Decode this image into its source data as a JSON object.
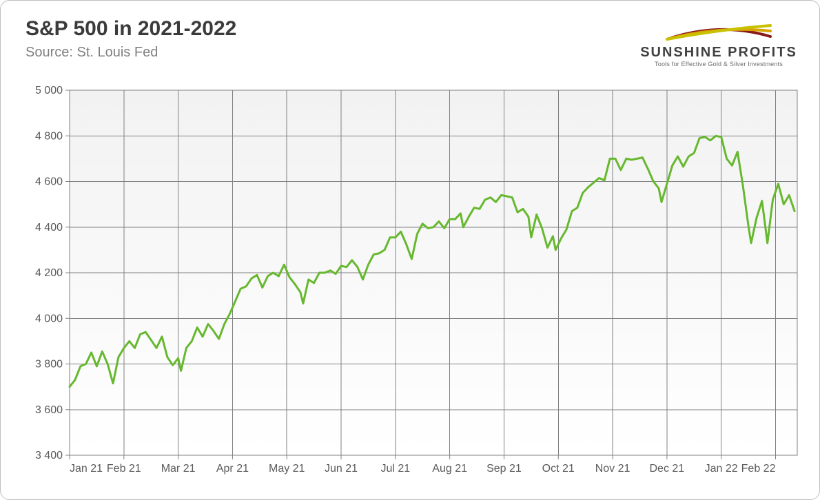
{
  "header": {
    "title": "S&P 500 in 2021-2022",
    "source": "Source: St. Louis Fed"
  },
  "logo": {
    "brand": "SUNSHINE PROFITS",
    "tagline": "Tools for Effective Gold & Silver Investments",
    "stroke_colors": [
      "#8a1a1a",
      "#d9a400",
      "#c9c000"
    ]
  },
  "chart": {
    "type": "line",
    "background_top": "#f2f2f2",
    "background_bottom": "#ffffff",
    "grid_color": "#808080",
    "grid_width": 1,
    "line_color": "#66b82e",
    "line_width": 3,
    "tick_font_size": 16,
    "tick_color": "#5a5a5a",
    "y": {
      "min": 3400,
      "max": 5000,
      "step": 200,
      "labels": [
        "3 400",
        "3 600",
        "3 800",
        "4 000",
        "4 200",
        "4 400",
        "4 600",
        "4 800",
        "5 000"
      ]
    },
    "x": {
      "labels": [
        "Jan 21",
        "Feb 21",
        "Mar 21",
        "Apr 21",
        "May 21",
        "Jun 21",
        "Jul 21",
        "Aug 21",
        "Sep 21",
        "Oct 21",
        "Nov 21",
        "Dec 21",
        "Jan 22",
        "Feb 22"
      ],
      "months": 13.4
    },
    "series": [
      {
        "m": 0.0,
        "v": 3700
      },
      {
        "m": 0.1,
        "v": 3730
      },
      {
        "m": 0.2,
        "v": 3790
      },
      {
        "m": 0.3,
        "v": 3800
      },
      {
        "m": 0.4,
        "v": 3850
      },
      {
        "m": 0.5,
        "v": 3790
      },
      {
        "m": 0.6,
        "v": 3855
      },
      {
        "m": 0.7,
        "v": 3800
      },
      {
        "m": 0.8,
        "v": 3715
      },
      {
        "m": 0.9,
        "v": 3830
      },
      {
        "m": 1.0,
        "v": 3870
      },
      {
        "m": 1.1,
        "v": 3900
      },
      {
        "m": 1.2,
        "v": 3870
      },
      {
        "m": 1.3,
        "v": 3930
      },
      {
        "m": 1.4,
        "v": 3940
      },
      {
        "m": 1.5,
        "v": 3905
      },
      {
        "m": 1.6,
        "v": 3870
      },
      {
        "m": 1.7,
        "v": 3920
      },
      {
        "m": 1.8,
        "v": 3830
      },
      {
        "m": 1.9,
        "v": 3795
      },
      {
        "m": 2.0,
        "v": 3825
      },
      {
        "m": 2.05,
        "v": 3770
      },
      {
        "m": 2.15,
        "v": 3870
      },
      {
        "m": 2.25,
        "v": 3900
      },
      {
        "m": 2.35,
        "v": 3960
      },
      {
        "m": 2.45,
        "v": 3920
      },
      {
        "m": 2.55,
        "v": 3975
      },
      {
        "m": 2.65,
        "v": 3945
      },
      {
        "m": 2.75,
        "v": 3910
      },
      {
        "m": 2.85,
        "v": 3975
      },
      {
        "m": 2.95,
        "v": 4020
      },
      {
        "m": 3.05,
        "v": 4075
      },
      {
        "m": 3.15,
        "v": 4130
      },
      {
        "m": 3.25,
        "v": 4140
      },
      {
        "m": 3.35,
        "v": 4175
      },
      {
        "m": 3.45,
        "v": 4190
      },
      {
        "m": 3.55,
        "v": 4135
      },
      {
        "m": 3.65,
        "v": 4185
      },
      {
        "m": 3.75,
        "v": 4200
      },
      {
        "m": 3.85,
        "v": 4185
      },
      {
        "m": 3.95,
        "v": 4235
      },
      {
        "m": 4.05,
        "v": 4180
      },
      {
        "m": 4.15,
        "v": 4150
      },
      {
        "m": 4.25,
        "v": 4115
      },
      {
        "m": 4.3,
        "v": 4065
      },
      {
        "m": 4.4,
        "v": 4170
      },
      {
        "m": 4.5,
        "v": 4155
      },
      {
        "m": 4.6,
        "v": 4200
      },
      {
        "m": 4.7,
        "v": 4200
      },
      {
        "m": 4.8,
        "v": 4210
      },
      {
        "m": 4.9,
        "v": 4195
      },
      {
        "m": 5.0,
        "v": 4230
      },
      {
        "m": 5.1,
        "v": 4225
      },
      {
        "m": 5.2,
        "v": 4255
      },
      {
        "m": 5.3,
        "v": 4225
      },
      {
        "m": 5.4,
        "v": 4170
      },
      {
        "m": 5.5,
        "v": 4235
      },
      {
        "m": 5.6,
        "v": 4280
      },
      {
        "m": 5.7,
        "v": 4285
      },
      {
        "m": 5.8,
        "v": 4300
      },
      {
        "m": 5.9,
        "v": 4355
      },
      {
        "m": 6.0,
        "v": 4355
      },
      {
        "m": 6.1,
        "v": 4380
      },
      {
        "m": 6.2,
        "v": 4325
      },
      {
        "m": 6.3,
        "v": 4260
      },
      {
        "m": 6.4,
        "v": 4370
      },
      {
        "m": 6.5,
        "v": 4415
      },
      {
        "m": 6.6,
        "v": 4395
      },
      {
        "m": 6.7,
        "v": 4400
      },
      {
        "m": 6.8,
        "v": 4425
      },
      {
        "m": 6.9,
        "v": 4395
      },
      {
        "m": 7.0,
        "v": 4435
      },
      {
        "m": 7.1,
        "v": 4435
      },
      {
        "m": 7.2,
        "v": 4460
      },
      {
        "m": 7.25,
        "v": 4400
      },
      {
        "m": 7.35,
        "v": 4445
      },
      {
        "m": 7.45,
        "v": 4485
      },
      {
        "m": 7.55,
        "v": 4480
      },
      {
        "m": 7.65,
        "v": 4520
      },
      {
        "m": 7.75,
        "v": 4530
      },
      {
        "m": 7.85,
        "v": 4510
      },
      {
        "m": 7.95,
        "v": 4540
      },
      {
        "m": 8.05,
        "v": 4535
      },
      {
        "m": 8.15,
        "v": 4530
      },
      {
        "m": 8.25,
        "v": 4465
      },
      {
        "m": 8.35,
        "v": 4480
      },
      {
        "m": 8.45,
        "v": 4445
      },
      {
        "m": 8.5,
        "v": 4355
      },
      {
        "m": 8.6,
        "v": 4455
      },
      {
        "m": 8.7,
        "v": 4395
      },
      {
        "m": 8.8,
        "v": 4310
      },
      {
        "m": 8.9,
        "v": 4360
      },
      {
        "m": 8.95,
        "v": 4300
      },
      {
        "m": 9.05,
        "v": 4350
      },
      {
        "m": 9.15,
        "v": 4390
      },
      {
        "m": 9.25,
        "v": 4470
      },
      {
        "m": 9.35,
        "v": 4485
      },
      {
        "m": 9.45,
        "v": 4550
      },
      {
        "m": 9.55,
        "v": 4575
      },
      {
        "m": 9.65,
        "v": 4595
      },
      {
        "m": 9.75,
        "v": 4615
      },
      {
        "m": 9.85,
        "v": 4605
      },
      {
        "m": 9.95,
        "v": 4700
      },
      {
        "m": 10.05,
        "v": 4700
      },
      {
        "m": 10.15,
        "v": 4650
      },
      {
        "m": 10.25,
        "v": 4700
      },
      {
        "m": 10.35,
        "v": 4695
      },
      {
        "m": 10.45,
        "v": 4700
      },
      {
        "m": 10.55,
        "v": 4705
      },
      {
        "m": 10.65,
        "v": 4655
      },
      {
        "m": 10.75,
        "v": 4600
      },
      {
        "m": 10.85,
        "v": 4570
      },
      {
        "m": 10.9,
        "v": 4510
      },
      {
        "m": 11.0,
        "v": 4590
      },
      {
        "m": 11.1,
        "v": 4670
      },
      {
        "m": 11.2,
        "v": 4710
      },
      {
        "m": 11.3,
        "v": 4665
      },
      {
        "m": 11.4,
        "v": 4710
      },
      {
        "m": 11.5,
        "v": 4725
      },
      {
        "m": 11.6,
        "v": 4790
      },
      {
        "m": 11.7,
        "v": 4795
      },
      {
        "m": 11.8,
        "v": 4780
      },
      {
        "m": 11.9,
        "v": 4800
      },
      {
        "m": 12.0,
        "v": 4795
      },
      {
        "m": 12.1,
        "v": 4700
      },
      {
        "m": 12.2,
        "v": 4670
      },
      {
        "m": 12.3,
        "v": 4730
      },
      {
        "m": 12.4,
        "v": 4580
      },
      {
        "m": 12.5,
        "v": 4405
      },
      {
        "m": 12.55,
        "v": 4330
      },
      {
        "m": 12.65,
        "v": 4440
      },
      {
        "m": 12.75,
        "v": 4515
      },
      {
        "m": 12.8,
        "v": 4425
      },
      {
        "m": 12.85,
        "v": 4330
      },
      {
        "m": 12.95,
        "v": 4520
      },
      {
        "m": 13.05,
        "v": 4590
      },
      {
        "m": 13.15,
        "v": 4500
      },
      {
        "m": 13.25,
        "v": 4540
      },
      {
        "m": 13.35,
        "v": 4470
      }
    ]
  }
}
